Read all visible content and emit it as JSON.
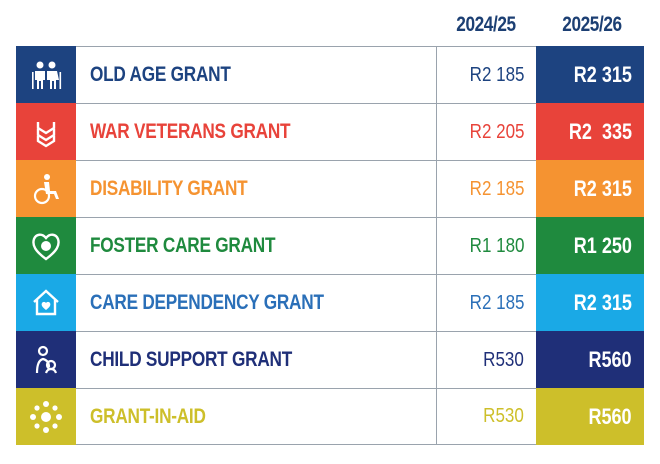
{
  "header": {
    "year_prev": "2024/25",
    "year_curr": "2025/26"
  },
  "grants": [
    {
      "name": "OLD AGE GRANT",
      "prev": "R2 185",
      "curr": "R2 315",
      "color": "#1d4380",
      "icon": "elderly-couple-icon"
    },
    {
      "name": "WAR VETERANS GRANT",
      "prev": "R2 205",
      "curr": "R2  335",
      "color": "#e8433a",
      "icon": "military-chevron-icon"
    },
    {
      "name": "DISABILITY GRANT",
      "prev": "R2 185",
      "curr": "R2 315",
      "color": "#f59331",
      "icon": "wheelchair-icon"
    },
    {
      "name": "FOSTER CARE GRANT",
      "prev": "R1 180",
      "curr": "R1 250",
      "color": "#1f8a3e",
      "icon": "heart-hands-icon"
    },
    {
      "name": "CARE DEPENDENCY GRANT",
      "prev": "R2 185",
      "curr": "R2 315",
      "color": "#1aa9e6",
      "icon": "house-heart-icon"
    },
    {
      "name": "CHILD SUPPORT GRANT",
      "prev": "R530",
      "curr": "R560",
      "color": "#1f2f78",
      "icon": "mother-child-icon"
    },
    {
      "name": "GRANT-IN-AID",
      "prev": "R530",
      "curr": "R560",
      "color": "#cdbf2a",
      "icon": "people-network-icon"
    }
  ]
}
